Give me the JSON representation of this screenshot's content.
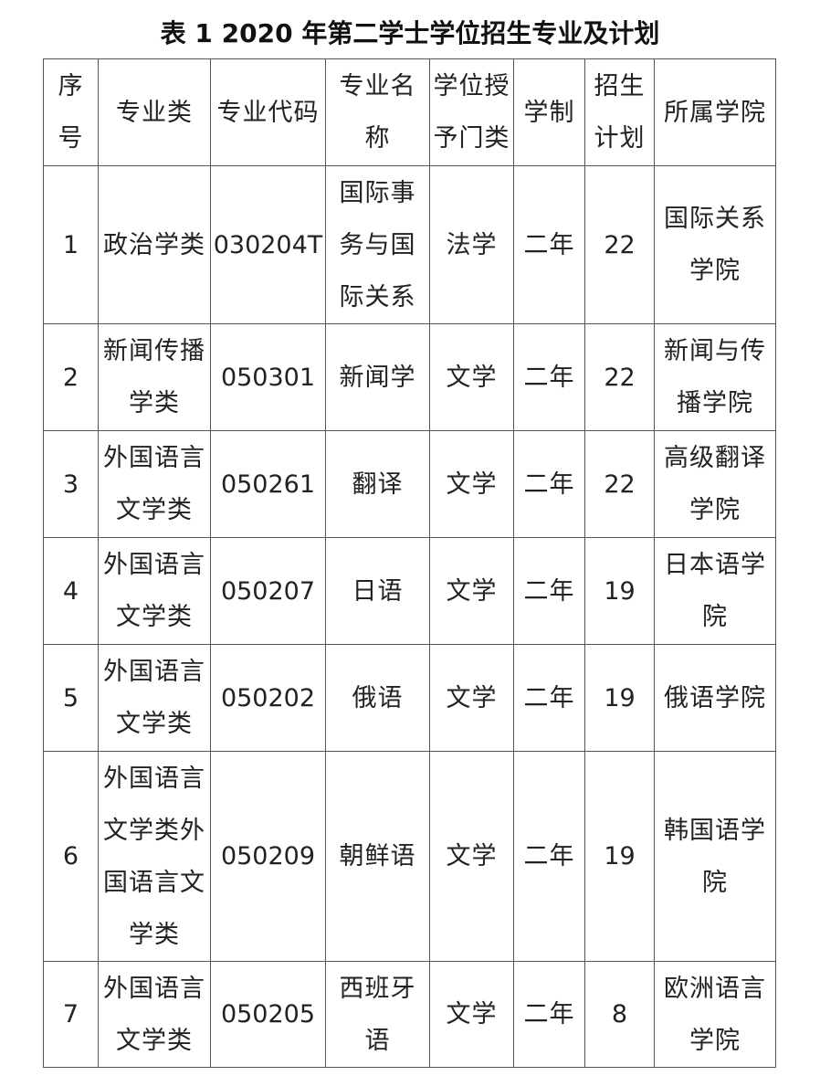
{
  "title": "表 1 2020 年第二学士学位招生专业及计划",
  "table": {
    "headers": [
      "序号",
      "专业类",
      "专业代码",
      "专业名称",
      "学位授予门类",
      "学制",
      "招生计划",
      "所属学院"
    ],
    "rows": [
      [
        "1",
        "政治学类",
        "030204T",
        "国际事务与国际关系",
        "法学",
        "二年",
        "22",
        "国际关系学院"
      ],
      [
        "2",
        "新闻传播学类",
        "050301",
        "新闻学",
        "文学",
        "二年",
        "22",
        "新闻与传播学院"
      ],
      [
        "3",
        "外国语言文学类",
        "050261",
        "翻译",
        "文学",
        "二年",
        "22",
        "高级翻译学院"
      ],
      [
        "4",
        "外国语言文学类",
        "050207",
        "日语",
        "文学",
        "二年",
        "19",
        "日本语学院"
      ],
      [
        "5",
        "外国语言文学类",
        "050202",
        "俄语",
        "文学",
        "二年",
        "19",
        "俄语学院"
      ],
      [
        "6",
        "外国语言文学类外国语言文学类",
        "050209",
        "朝鲜语",
        "文学",
        "二年",
        "19",
        "韩国语学院"
      ],
      [
        "7",
        "外国语言文学类",
        "050205",
        "西班牙语",
        "文学",
        "二年",
        "8",
        "欧洲语言学院"
      ]
    ]
  }
}
